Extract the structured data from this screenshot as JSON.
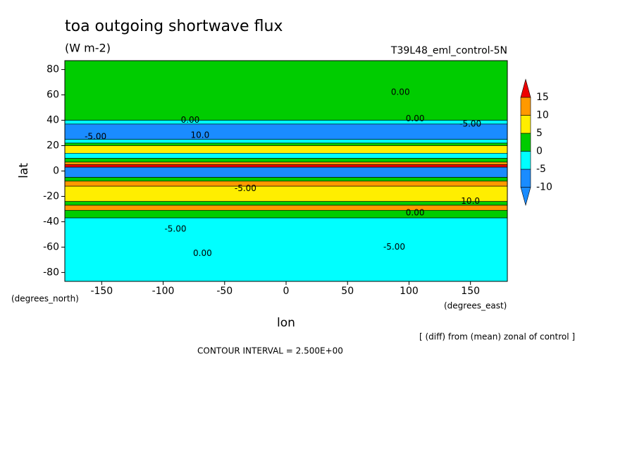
{
  "chart_data": {
    "type": "contour",
    "title": "toa outgoing shortwave flux",
    "subtitle": "(W m-2)",
    "dataset": "T39L48_eml_control-5N",
    "x_label": "lon",
    "y_label": "lat",
    "x_units": "(degrees_east)",
    "y_units": "(degrees_north)",
    "note": "[ (diff) from (mean) zonal of control ]",
    "contour_interval": "CONTOUR INTERVAL = 2.500E+00",
    "xlim": [
      -180,
      180
    ],
    "ylim": [
      -87,
      87
    ],
    "xticks": [
      -150,
      -100,
      -50,
      0,
      50,
      100,
      150
    ],
    "yticks": [
      -80,
      -60,
      -40,
      -20,
      0,
      20,
      40,
      60,
      80
    ],
    "levels": [
      -10,
      -5,
      0,
      5,
      10,
      15
    ],
    "colors": [
      "#1a8cff",
      "#1a8cff",
      "#00ffff",
      "#00cc00",
      "#ffee00",
      "#ff9900",
      "#ee0000"
    ],
    "lat_edges": [
      87,
      40,
      37,
      25,
      22,
      20,
      14,
      10,
      7,
      5,
      3,
      -5,
      -8,
      -12,
      -24,
      -27,
      -31,
      -37,
      -87
    ],
    "values": [
      2.5,
      -2.5,
      -7.5,
      -2.5,
      2.5,
      7.5,
      -2.5,
      2.5,
      12.5,
      17.5,
      -7.5,
      2.5,
      12.5,
      7.5,
      2.5,
      12.5,
      2.5,
      -2.5
    ],
    "contour_labels": [
      {
        "text": "0.00",
        "lon": 93,
        "lat": 62
      },
      {
        "text": "0.00",
        "lon": 105,
        "lat": 41
      },
      {
        "text": "0.00",
        "lon": -78,
        "lat": 40
      },
      {
        "text": "-5.00",
        "lon": 150,
        "lat": 37
      },
      {
        "text": "-5.00",
        "lon": -155,
        "lat": 27
      },
      {
        "text": "10.0",
        "lon": -70,
        "lat": 28
      },
      {
        "text": "-5.00",
        "lon": -33,
        "lat": -14
      },
      {
        "text": "-5.00",
        "lon": 88,
        "lat": -60
      },
      {
        "text": "0.00",
        "lon": -68,
        "lat": -65
      },
      {
        "text": "-5.00",
        "lon": -90,
        "lat": -46
      },
      {
        "text": "10.0",
        "lon": 150,
        "lat": -24
      },
      {
        "text": "0.00",
        "lon": 105,
        "lat": -33
      }
    ]
  }
}
